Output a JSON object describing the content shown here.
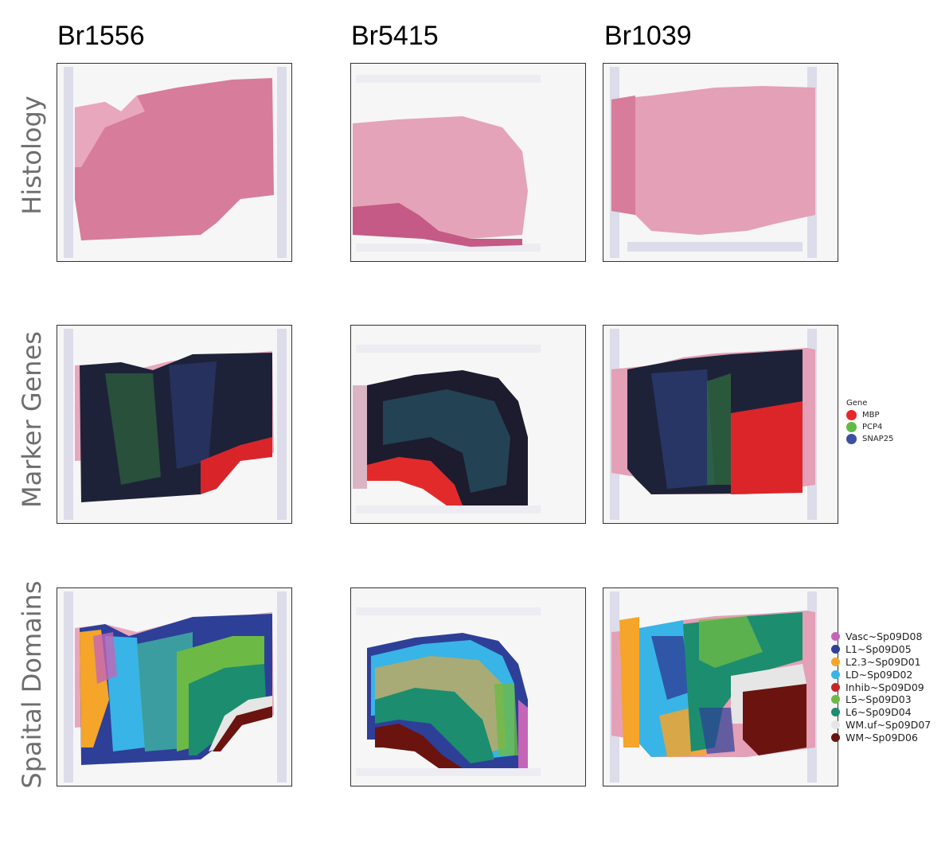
{
  "columns": [
    {
      "title": "Br1556"
    },
    {
      "title": "Br5415"
    },
    {
      "title": "Br1039"
    }
  ],
  "rows": [
    {
      "label": "Histology"
    },
    {
      "label": "Marker Genes"
    },
    {
      "label": "Spaital Domains"
    }
  ],
  "gene_legend": {
    "title": "Gene",
    "items": [
      {
        "label": "MBP",
        "color": "#e8262b"
      },
      {
        "label": "PCP4",
        "color": "#5fb946"
      },
      {
        "label": "SNAP25",
        "color": "#3d4fa0"
      }
    ]
  },
  "domain_legend": {
    "items": [
      {
        "label": "Vasc~Sp09D08",
        "color": "#c465b8"
      },
      {
        "label": "L1~Sp09D05",
        "color": "#2e3f98"
      },
      {
        "label": "L2.3~Sp09D01",
        "color": "#f4a52a"
      },
      {
        "label": "LD~Sp09D02",
        "color": "#39b4e6"
      },
      {
        "label": "Inhib~Sp09D09",
        "color": "#c52528"
      },
      {
        "label": "L5~Sp09D03",
        "color": "#6cba45"
      },
      {
        "label": "L6~Sp09D04",
        "color": "#1c8d6f"
      },
      {
        "label": "WM.uf~Sp09D07",
        "color": "#e6e6e6"
      },
      {
        "label": "WM~Sp09D06",
        "color": "#6b130f"
      }
    ]
  },
  "colors": {
    "tissue": "#d77c9b",
    "tissue_light": "#e8a7bd",
    "background": "#f6f6f6",
    "dark_spot": "#1c1c2e"
  }
}
